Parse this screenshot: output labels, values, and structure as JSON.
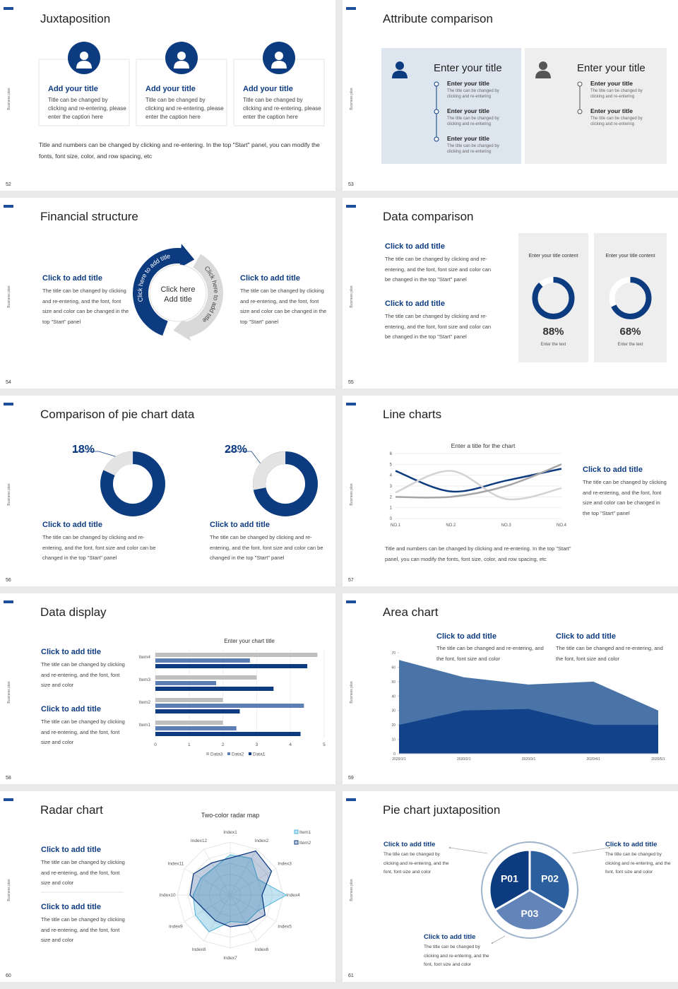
{
  "side_label": "Business plan",
  "slides": [
    {
      "number": 52,
      "title": "Juxtaposition",
      "cards": [
        {
          "title": "Add your title",
          "text": "Title can be changed by clicking and re-entering, please enter the caption here"
        },
        {
          "title": "Add your title",
          "text": "Title can be changed by clicking and re-entering, please enter the caption here"
        },
        {
          "title": "Add your title",
          "text": "Title can be changed by clicking and re-entering, please enter the caption here"
        }
      ],
      "note": "Title and numbers can be changed by clicking and re-entering. In the top \"Start\" panel, you can modify the fonts, font size, color, and row spacing, etc"
    },
    {
      "number": 53,
      "title": "Attribute comparison",
      "panels": [
        {
          "title": "Enter your title",
          "items": [
            {
              "title": "Enter your title",
              "text": "The title can be changed by clicking and re-entering"
            },
            {
              "title": "Enter your title",
              "text": "The title can be changed by clicking and re-entering"
            },
            {
              "title": "Enter your title",
              "text": "The title can be changed by clicking and re-entering"
            }
          ]
        },
        {
          "title": "Enter your title",
          "items": [
            {
              "title": "Enter your title",
              "text": "The title can be changed by clicking and re-entering"
            },
            {
              "title": "Enter your title",
              "text": "The title can be changed by clicking and re-entering"
            }
          ]
        }
      ]
    },
    {
      "number": 54,
      "title": "Financial structure",
      "blocks": [
        {
          "title": "Click to add title",
          "text": "The title can be changed by clicking and re-entering, and the font, font size and color can be changed in the top \"Start\" panel"
        },
        {
          "title": "Click to add title",
          "text": "The title can be changed by clicking and re-entering, and the font, font size and color can be changed in the top \"Start\" panel"
        }
      ],
      "cycle": {
        "center": [
          "Click here",
          "Add title"
        ],
        "arc_labels": [
          "Click here to add title",
          "Click here to add title"
        ]
      }
    },
    {
      "number": 55,
      "title": "Data comparison",
      "blocks": [
        {
          "title": "Click to add title",
          "text": "The title can be changed by clicking and re-entering, and the font, font size and color can be changed in the top \"Start\" panel"
        },
        {
          "title": "Click to add title",
          "text": "The title can be changed by clicking and re-entering, and the font, font size and color can be changed in the top \"Start\" panel"
        }
      ],
      "gauges": [
        {
          "heading": "Enter your title content",
          "value": 88,
          "label": "88%",
          "caption": "Enter the text"
        },
        {
          "heading": "Enter your title content",
          "value": 68,
          "label": "68%",
          "caption": "Enter the text"
        }
      ]
    },
    {
      "number": 56,
      "title": "Comparison of pie chart data",
      "pies": [
        {
          "value": 18,
          "label": "18%",
          "title": "Click to add title",
          "text": "The title can be changed by clicking and re-entering, and the font, font size and color can be changed in the top \"Start\" panel"
        },
        {
          "value": 28,
          "label": "28%",
          "title": "Click to add title",
          "text": "The title can be changed by clicking and re-entering, and the font, font size and color can be changed in the top \"Start\" panel"
        }
      ]
    },
    {
      "number": 57,
      "title": "Line charts",
      "chart": {
        "type": "line",
        "title": "Enter a title for the chart",
        "categories": [
          "NO.1",
          "NO.2",
          "NO.3",
          "NO.4"
        ],
        "series": [
          {
            "color": "#0d3b80",
            "values": [
              4.4,
              2.5,
              3.5,
              4.6
            ]
          },
          {
            "color": "#d3d3d3",
            "values": [
              2.4,
              4.4,
              1.8,
              2.8
            ]
          },
          {
            "color": "#a6a6a6",
            "values": [
              2,
              2,
              3,
              5
            ]
          }
        ],
        "ylim": [
          0,
          6
        ],
        "yticks": [
          0,
          1,
          2,
          3,
          4,
          5,
          6
        ],
        "grid": true
      },
      "block": {
        "title": "Click to add title",
        "text": "The title can be changed by clicking and re-entering, and the font, font size and color can be changed in the top \"Start\" panel"
      },
      "note": "Title and numbers can be changed by clicking and re-entering. In the top \"Start\" panel, you can modify the fonts, font size, color, and row spacing, etc"
    },
    {
      "number": 58,
      "title": "Data display",
      "blocks": [
        {
          "title": "Click to add title",
          "text": "The title can be changed by clicking and re-entering, and the font, font size and color"
        },
        {
          "title": "Click to add title",
          "text": "The title can be changed by clicking and re-entering, and the font, font size and color"
        }
      ],
      "chart": {
        "type": "bar",
        "orientation": "horizontal",
        "title": "Enter your chart title",
        "categories": [
          "Item1",
          "Item2",
          "Item3",
          "Item4"
        ],
        "series": [
          {
            "name": "Data3",
            "color": "#bfbfbf",
            "values": [
              2,
              2,
              3,
              4.8
            ]
          },
          {
            "name": "Data2",
            "color": "#5b7fb5",
            "values": [
              2.4,
              4.4,
              1.8,
              2.8
            ]
          },
          {
            "name": "Data1",
            "color": "#0d3b80",
            "values": [
              4.3,
              2.5,
              3.5,
              4.5
            ]
          }
        ],
        "xlim": [
          0,
          5
        ],
        "xticks": [
          0,
          1,
          2,
          3,
          4,
          5
        ],
        "grid": true,
        "legend": "bottom"
      }
    },
    {
      "number": 59,
      "title": "Area chart",
      "blocks": [
        {
          "title": "Click to add title",
          "text": "The title can be changed and re-entering, and the font, font size and color"
        },
        {
          "title": "Click to add title",
          "text": "The title can be changed and re-entering, and the font, font size and color"
        }
      ],
      "chart": {
        "type": "area",
        "categories": [
          "2020/1/1",
          "2020/2/1",
          "2020/3/1",
          "2020/4/1",
          "2020/5/1"
        ],
        "series": [
          {
            "color": "#4a74a8",
            "values": [
              65,
              53,
              48,
              50,
              30
            ]
          },
          {
            "color": "#12438a",
            "values": [
              20,
              30,
              31,
              20,
              20
            ]
          }
        ],
        "ylim": [
          0,
          70
        ],
        "yticks": [
          0,
          10,
          20,
          30,
          40,
          50,
          60,
          70
        ]
      }
    },
    {
      "number": 60,
      "title": "Radar chart",
      "blocks": [
        {
          "title": "Click to add title",
          "text": "The title can be changed by clicking and re-entering, and the font, font size and color"
        },
        {
          "title": "Click to add title",
          "text": "The title can be changed by clicking and re-entering, and the font, font size and color"
        }
      ],
      "chart": {
        "type": "radar",
        "title": "Two-color radar map",
        "categories": [
          "Index1",
          "Index2",
          "Index3",
          "Index4",
          "Index5",
          "Index6",
          "Index7",
          "Index8",
          "Index9",
          "Index10",
          "Index11",
          "Index12"
        ],
        "series": [
          {
            "name": "Item1",
            "color": "#4fb3d9",
            "values": [
              3.8,
              4,
              3,
              5.3,
              3,
              3,
              2.5,
              4,
              3.8,
              3.5,
              3.2,
              3
            ]
          },
          {
            "name": "Item2",
            "color": "#0d3b80",
            "values": [
              3.5,
              4.8,
              4.5,
              3,
              3.8,
              3.2,
              3,
              2.8,
              2.8,
              3.8,
              4,
              3.5
            ]
          }
        ],
        "rlim": [
          0,
          5
        ],
        "legend": "top-right"
      }
    },
    {
      "number": 61,
      "title": "Pie chart juxtaposition",
      "segments": [
        "P01",
        "P02",
        "P03"
      ],
      "blocks": [
        {
          "title": "Click to add title",
          "text": "The title can be changed by clicking and re-entering, and the font, font size and color"
        },
        {
          "title": "Click to add title",
          "text": "The title can be changed by clicking and re-entering, and the font, font size and color"
        },
        {
          "title": "Click to add title",
          "text": "The title can be changed by clicking and re-entering, and the font, font size and color"
        }
      ]
    }
  ]
}
